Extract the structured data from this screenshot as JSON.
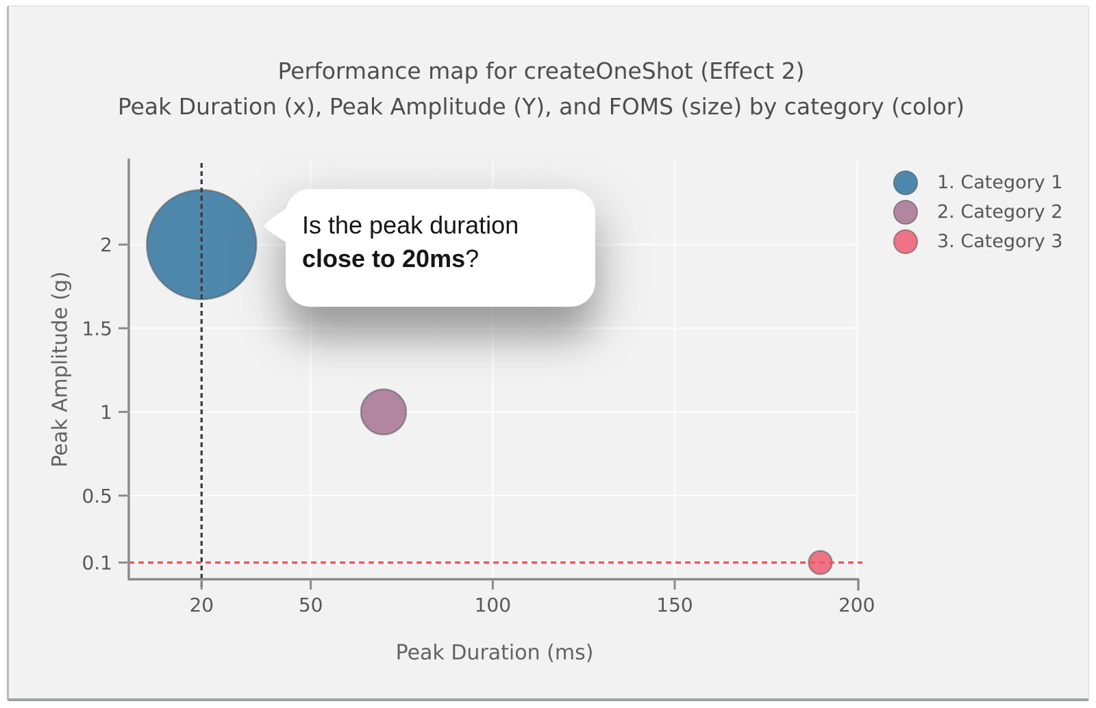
{
  "chart_data": {
    "type": "scatter",
    "title": "Performance map for createOneShot (Effect 2)",
    "subtitle": "Peak Duration (x), Peak Amplitude (Y), and FOMS (size) by category (color)",
    "xlabel": "Peak Duration (ms)",
    "ylabel": "Peak Amplitude (g)",
    "xlim": [
      0,
      201
    ],
    "ylim": [
      0,
      2.5
    ],
    "x_ticks": [
      20,
      50,
      100,
      150,
      200
    ],
    "y_ticks": [
      0.1,
      0.5,
      1,
      1.5,
      2
    ],
    "grid": true,
    "legend_position": "top-right",
    "series": [
      {
        "name": "1. Category 1",
        "color": "#4e87ac",
        "points": [
          {
            "x": 20,
            "y": 2,
            "radius_px": 80
          }
        ]
      },
      {
        "name": "2. Category 2",
        "color": "#b286a1",
        "points": [
          {
            "x": 70,
            "y": 1,
            "radius_px": 33
          }
        ]
      },
      {
        "name": "3. Category 3",
        "color": "#ee7386",
        "points": [
          {
            "x": 190,
            "y": 0.1,
            "radius_px": 17
          }
        ]
      }
    ],
    "reference_lines": [
      {
        "axis": "x",
        "value": 20,
        "color": "#3c3c3c",
        "style": "dotted"
      },
      {
        "axis": "y",
        "value": 0.1,
        "color": "#f2555a",
        "style": "dotted"
      }
    ]
  },
  "callout": {
    "line1": "Is the peak duration",
    "line2_bold": "close to 20ms",
    "line2_suffix": "?"
  },
  "colors": {
    "panel_background": "#f2f2f2",
    "axis": "#8a8a8a",
    "tick_label": "#585858",
    "grid_line": "#fbfbfb",
    "title_text": "#4e4e4e"
  }
}
